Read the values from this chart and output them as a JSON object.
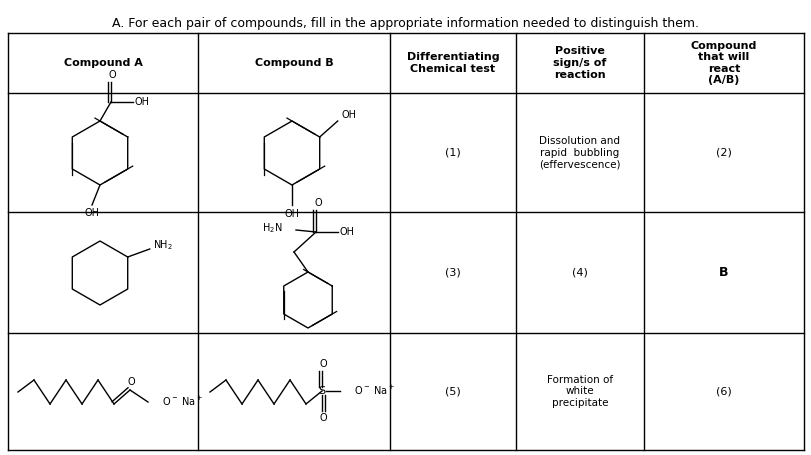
{
  "title": "A. For each pair of compounds, fill in the appropriate information needed to distinguish them.",
  "col_headers": [
    "Compound A",
    "Compound B",
    "Differentiating\nChemical test",
    "Positive\nsign/s of\nreaction",
    "Compound\nthat will\nreact\n(A/B)"
  ],
  "background": "#ffffff",
  "line_color": "#000000",
  "text_color": "#000000",
  "row1_col3": "(1)",
  "row1_col4": "Dissolution and\nrapid  bubbling\n(effervescence)",
  "row1_col5": "(2)",
  "row2_col3": "(3)",
  "row2_col4": "(4)",
  "row2_col5": "B",
  "row3_col3": "(5)",
  "row3_col4": "Formation of\nwhite\nprecipitate",
  "row3_col5": "(6)",
  "title_fontsize": 9,
  "header_fontsize": 8,
  "cell_fontsize": 8,
  "struct_fontsize": 7
}
